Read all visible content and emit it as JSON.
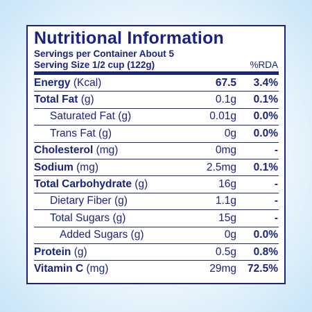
{
  "label": {
    "title": "Nutritional Information",
    "servings_per_container": "Servings per Container  About 5",
    "serving_size": "Serving Size 1/2 cup (122g)",
    "rda_header": "%RDA",
    "rows": [
      {
        "name": "Energy",
        "unit": " (Kcal)",
        "amount": "67.5",
        "rda": "3.4%"
      },
      {
        "name": "Total Fat",
        "unit": " (g)",
        "amount": "0.1g",
        "rda": "0.1%"
      },
      {
        "name": "Saturated Fat",
        "unit": " (g)",
        "amount": "0.01g",
        "rda": "0.0%"
      },
      {
        "name": "Trans Fat",
        "unit": " (g)",
        "amount": "0g",
        "rda": "0.0%"
      },
      {
        "name": "Cholesterol",
        "unit": " (mg)",
        "amount": "0mg",
        "rda": "-"
      },
      {
        "name": "Sodium",
        "unit": " (mg)",
        "amount": "2.5mg",
        "rda": "0.1%"
      },
      {
        "name": "Total Carbohydrate",
        "unit": " (g)",
        "amount": "16g",
        "rda": "-"
      },
      {
        "name": "Dietary Fiber",
        "unit": " (g)",
        "amount": "1.1g",
        "rda": "-"
      },
      {
        "name": "Total Sugars",
        "unit": " (g)",
        "amount": "15g",
        "rda": "-"
      },
      {
        "name": "Added Sugars",
        "unit": " (g)",
        "amount": "0g",
        "rda": "0.0%"
      },
      {
        "name": "Protein",
        "unit": " (g)",
        "amount": "0.5g",
        "rda": "0.8%"
      },
      {
        "name": "Vitamin C",
        "unit": " (mg)",
        "amount": "29mg",
        "rda": "72.5%"
      }
    ]
  }
}
